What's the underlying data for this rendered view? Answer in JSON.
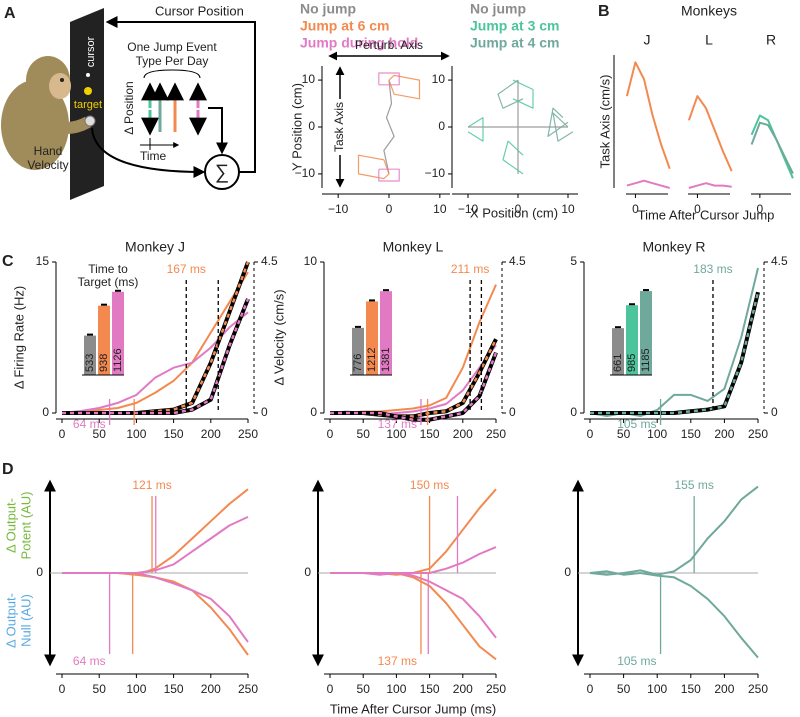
{
  "diagram": {
    "label": "A",
    "cursor_position": "Cursor Position",
    "screen_cursor": "cursor",
    "screen_target": "target",
    "jump_type": [
      "One Jump Event",
      "Type Per Day"
    ],
    "delta_position": "Δ Position",
    "time": "Time",
    "hand_velocity": [
      "Hand",
      "Velocity"
    ],
    "sum": "∑"
  },
  "chart_data": [
    {
      "type": "trajectory",
      "ylabel": "Y Position (cm)",
      "xlabel": "X Position (cm)",
      "perturb_label": "Perturb. Axis",
      "task_label": "Task Axis",
      "xlim": [
        -12,
        12
      ],
      "ylim": [
        -13,
        13
      ],
      "xticks": [
        {
          "value": -10,
          "label": "−10"
        },
        0,
        10
      ],
      "yticks": [
        {
          "value": -10,
          "label": "−10"
        },
        0,
        10
      ],
      "series": [
        {
          "name": "No jump",
          "color": "#8c8c8c",
          "x": [
            0,
            -1,
            1,
            -0.5,
            0.5,
            0
          ],
          "y": [
            -10,
            -5,
            -2,
            2,
            5,
            10
          ]
        },
        {
          "name": "Jump at 6 cm",
          "color": "#f3894f",
          "x": [
            0,
            -1,
            -6,
            -6,
            -1,
            0,
            null,
            0,
            1,
            6,
            6,
            1,
            0
          ],
          "y": [
            -10,
            -7,
            -6,
            -10,
            -11,
            -10,
            null,
            10,
            7,
            6,
            10,
            11,
            10
          ]
        },
        {
          "name": "Jump during hold",
          "color": "#e27ac3",
          "x": [
            -2,
            2,
            2,
            -2,
            -2,
            null,
            -2,
            2,
            2,
            -2,
            -2
          ],
          "y": [
            9,
            9,
            11.5,
            11.5,
            9,
            null,
            -9,
            -9,
            -11.5,
            -11.5,
            -9
          ]
        }
      ]
    },
    {
      "type": "trajectory",
      "xlim": [
        -12,
        12
      ],
      "ylim": [
        -13,
        13
      ],
      "xticks": [
        {
          "value": -10,
          "label": "−10"
        },
        0,
        10
      ],
      "yticks": [
        {
          "value": -10,
          "label": "−10"
        },
        0,
        10
      ],
      "series": [
        {
          "name": "No jump",
          "color": "#8c8c8c",
          "x": [
            0,
            0,
            null,
            -10,
            10
          ],
          "y": [
            -10,
            10,
            null,
            0,
            0
          ]
        },
        {
          "name": "Jump at 3 cm",
          "color": "#4cc59c",
          "x": [
            -1,
            3,
            3,
            -1,
            null,
            -10,
            -7,
            -7,
            -10,
            null,
            1,
            -3,
            -2,
            1
          ],
          "y": [
            10,
            8,
            4,
            6,
            null,
            0,
            2,
            -3,
            -1,
            null,
            -10,
            -7,
            -3,
            -6
          ]
        },
        {
          "name": "Jump at 4 cm",
          "color": "#6fa99c",
          "x": [
            10,
            7,
            8,
            11,
            null,
            0,
            -4,
            -3,
            1,
            null,
            10,
            6,
            7,
            9
          ],
          "y": [
            0,
            3,
            -3,
            -1,
            null,
            10,
            7,
            4,
            6,
            null,
            1,
            -2,
            4,
            2
          ]
        }
      ]
    },
    {
      "type": "line",
      "panel": "B",
      "title": "J",
      "ylabel": "Task Axis (cm/s)",
      "axis_style": "left",
      "x": [
        -10,
        0,
        10,
        20,
        30,
        40
      ],
      "xlim": [
        -18,
        45
      ],
      "ylim": [
        0,
        55
      ],
      "xticks": [
        0
      ],
      "series": [
        {
          "name": "Jump at 6 cm",
          "color": "#f3894f",
          "values": [
            38,
            52,
            45,
            30,
            18,
            8
          ]
        },
        {
          "name": "Jump during hold",
          "color": "#e27ac3",
          "values": [
            1,
            2,
            3,
            2,
            1,
            0
          ]
        }
      ]
    },
    {
      "type": "line",
      "suptitle": "Monkeys",
      "title": "L",
      "xlabel": "Time After Cursor Jump",
      "axis_style": "bottom",
      "x": [
        -10,
        0,
        10,
        20,
        30,
        40
      ],
      "xlim": [
        -18,
        45
      ],
      "ylim": [
        0,
        55
      ],
      "xticks": [
        0
      ],
      "series": [
        {
          "name": "Jump at 6 cm",
          "color": "#f3894f",
          "values": [
            28,
            38,
            33,
            24,
            15,
            7
          ]
        },
        {
          "name": "Jump during hold",
          "color": "#e27ac3",
          "values": [
            0,
            1,
            2,
            1,
            1,
            0.5
          ]
        }
      ]
    },
    {
      "type": "line",
      "title": "R",
      "axis_style": "bottom",
      "x": [
        -10,
        0,
        10,
        20,
        30,
        40
      ],
      "xlim": [
        -18,
        45
      ],
      "ylim": [
        0,
        55
      ],
      "xticks": [
        0
      ],
      "series": [
        {
          "name": "Jump at 3 cm",
          "color": "#4cc59c",
          "values": [
            22,
            30,
            28,
            20,
            12,
            4
          ]
        },
        {
          "name": "Jump at 4 cm",
          "color": "#6fa99c",
          "values": [
            18,
            27,
            26,
            20,
            13,
            6
          ]
        }
      ]
    },
    {
      "type": "line",
      "panel": "C",
      "title": "Monkey J",
      "ylabel": "Δ Firing Rate (Hz)",
      "y2label": "Δ Velocity (cm/s)",
      "axis_style": "spines",
      "x": [
        0,
        25,
        50,
        75,
        100,
        125,
        150,
        175,
        200,
        225,
        250
      ],
      "xlim": [
        0,
        250
      ],
      "ylim": [
        0,
        15
      ],
      "y2lim": [
        0,
        4.5
      ],
      "xticks": [
        0,
        50,
        100,
        150,
        200,
        250
      ],
      "yticks": [
        0,
        15
      ],
      "y2ticks": [
        0,
        4.5
      ],
      "series": [
        {
          "name": "Jump at 6 cm",
          "color": "#f3894f",
          "values": [
            0,
            0.1,
            0.3,
            0.5,
            1,
            2,
            3.2,
            5,
            8,
            11,
            14
          ]
        },
        {
          "name": "Jump during hold",
          "color": "#e27ac3",
          "values": [
            0,
            0.2,
            0.5,
            1,
            1.8,
            3.5,
            4.5,
            5,
            6.5,
            8.5,
            10
          ]
        },
        {
          "name": "Jump at 6 cm",
          "color": "#f3894f",
          "axis": "y2",
          "style": "dashed",
          "values": [
            0,
            0,
            0,
            0,
            0,
            0.05,
            0.1,
            0.3,
            1.5,
            3,
            4.5
          ]
        },
        {
          "name": "Jump during hold",
          "color": "#e27ac3",
          "axis": "y2",
          "style": "dashed",
          "values": [
            0,
            0,
            0,
            0,
            0,
            0,
            0,
            0.1,
            0.4,
            2,
            3.4
          ]
        }
      ],
      "annotations": [
        {
          "x": 167,
          "label": "167 ms",
          "color": "#f3894f",
          "pos": "top",
          "style": "dashed"
        },
        {
          "x": 210,
          "color": "#e27ac3",
          "pos": "top",
          "style": "dashed"
        },
        {
          "x": 64,
          "label": "64 ms",
          "color": "#e27ac3",
          "pos": "bottom"
        },
        {
          "x": 97,
          "color": "#f3894f",
          "pos": "bottom"
        }
      ],
      "inset": {
        "title": [
          "Time to",
          "Target (ms)"
        ],
        "ylim": [
          0,
          1150
        ],
        "values": [
          533,
          938,
          1126
        ],
        "colors": [
          "#8c8c8c",
          "#f3894f",
          "#e27ac3"
        ]
      }
    },
    {
      "type": "line",
      "title": "Monkey L",
      "axis_style": "spines",
      "x": [
        0,
        25,
        50,
        75,
        100,
        125,
        150,
        175,
        200,
        225,
        250
      ],
      "xlim": [
        0,
        250
      ],
      "ylim": [
        0,
        10
      ],
      "y2lim": [
        0,
        4.5
      ],
      "xticks": [
        0,
        50,
        100,
        150,
        200,
        250
      ],
      "yticks": [
        0,
        10
      ],
      "y2ticks": [
        0,
        4.5
      ],
      "series": [
        {
          "name": "Jump at 6 cm",
          "color": "#f3894f",
          "values": [
            0,
            0,
            0.1,
            0.1,
            0.2,
            0.3,
            0.5,
            1,
            3,
            6,
            8.5
          ]
        },
        {
          "name": "Jump during hold",
          "color": "#e27ac3",
          "values": [
            0,
            0.1,
            0,
            -0.1,
            0,
            0.1,
            0.3,
            0.6,
            1.5,
            3,
            4.5
          ]
        },
        {
          "name": "Jump at 6 cm",
          "color": "#f3894f",
          "axis": "y2",
          "style": "dashed",
          "values": [
            0,
            0,
            0,
            -0.05,
            -0.1,
            -0.1,
            0,
            0.05,
            0.3,
            1.2,
            2.2
          ]
        },
        {
          "name": "Jump during hold",
          "color": "#e27ac3",
          "axis": "y2",
          "style": "dashed",
          "values": [
            0,
            0,
            0,
            0,
            -0.1,
            -0.2,
            -0.2,
            -0.1,
            0,
            0.5,
            1.8
          ]
        }
      ],
      "annotations": [
        {
          "x": 211,
          "label": "211 ms",
          "color": "#f3894f",
          "pos": "top",
          "style": "dashed"
        },
        {
          "x": 228,
          "color": "#e27ac3",
          "pos": "top",
          "style": "dashed"
        },
        {
          "x": 137,
          "label": "137 ms",
          "color": "#e27ac3",
          "pos": "bottom"
        },
        {
          "x": 147,
          "color": "#f3894f",
          "pos": "bottom"
        }
      ],
      "inset": {
        "ylim": [
          0,
          1400
        ],
        "values": [
          776,
          1212,
          1381
        ],
        "colors": [
          "#8c8c8c",
          "#f3894f",
          "#e27ac3"
        ]
      }
    },
    {
      "type": "line",
      "title": "Monkey R",
      "axis_style": "spines",
      "x": [
        0,
        25,
        50,
        75,
        100,
        125,
        150,
        175,
        200,
        225,
        250
      ],
      "xlim": [
        0,
        250
      ],
      "ylim": [
        0,
        5
      ],
      "y2lim": [
        0,
        4.5
      ],
      "xticks": [
        0,
        50,
        100,
        150,
        200,
        250
      ],
      "yticks": [
        0,
        5
      ],
      "y2ticks": [
        0,
        4.5
      ],
      "series": [
        {
          "name": "Jump at 4 cm",
          "color": "#6fa99c",
          "values": [
            0,
            -0.1,
            0,
            -0.1,
            0.1,
            0.6,
            0.6,
            0.4,
            0.8,
            2.5,
            4.8
          ]
        },
        {
          "name": "Jump at 4 cm",
          "color": "#6fa99c",
          "axis": "y2",
          "style": "dashed",
          "values": [
            0,
            0,
            0,
            0,
            0,
            0,
            0.05,
            0.1,
            0.2,
            1.5,
            3.6
          ]
        }
      ],
      "annotations": [
        {
          "x": 183,
          "label": "183 ms",
          "color": "#6fa99c",
          "pos": "top",
          "style": "dashed"
        },
        {
          "x": 105,
          "label": "105 ms",
          "color": "#6fa99c",
          "pos": "bottom"
        }
      ],
      "inset": {
        "ylim": [
          0,
          1200
        ],
        "values": [
          661,
          985,
          1185
        ],
        "colors": [
          "#8c8c8c",
          "#4cc59c",
          "#6fa99c"
        ]
      }
    },
    {
      "type": "line",
      "panel": "D",
      "ylabel_potent": [
        "Δ Output-",
        "Potent (AU)"
      ],
      "ylabel_null": [
        "Δ Output-",
        "Null (AU)"
      ],
      "axis_style": "arrows",
      "x": [
        0,
        25,
        50,
        75,
        100,
        125,
        150,
        175,
        200,
        225,
        250
      ],
      "xlim": [
        0,
        250
      ],
      "ylim": [
        -1.1,
        1.1
      ],
      "xticks": [
        0,
        50,
        100,
        150,
        200,
        250
      ],
      "yticks": [
        0
      ],
      "series": [
        {
          "name": "Jump at 6 cm",
          "color": "#f3894f",
          "values": [
            0,
            0,
            0,
            0,
            -0.02,
            0.05,
            0.2,
            0.4,
            0.6,
            0.8,
            0.97
          ]
        },
        {
          "name": "Jump during hold",
          "color": "#e27ac3",
          "values": [
            0,
            0,
            0,
            0,
            0,
            0.03,
            0.1,
            0.25,
            0.4,
            0.55,
            0.65
          ]
        },
        {
          "name": "Jump at 6 cm",
          "color": "#f3894f",
          "values": [
            0,
            0,
            0,
            0,
            -0.02,
            -0.05,
            -0.1,
            -0.2,
            -0.4,
            -0.65,
            -0.95
          ]
        },
        {
          "name": "Jump during hold",
          "color": "#e27ac3",
          "values": [
            0,
            0,
            0,
            0,
            0,
            -0.05,
            -0.12,
            -0.2,
            -0.3,
            -0.5,
            -0.8
          ]
        }
      ],
      "annotations": [
        {
          "x": 121,
          "label": "121 ms",
          "color": "#f3894f",
          "pos": "top"
        },
        {
          "x": 126,
          "color": "#e27ac3",
          "pos": "top"
        },
        {
          "x": 64,
          "label": "64 ms",
          "color": "#e27ac3",
          "pos": "bottom"
        },
        {
          "x": 95,
          "color": "#f3894f",
          "pos": "bottom"
        }
      ]
    },
    {
      "type": "line",
      "xlabel": "Time After Cursor Jump (ms)",
      "axis_style": "arrows",
      "x": [
        0,
        25,
        50,
        75,
        100,
        125,
        150,
        175,
        200,
        225,
        250
      ],
      "xlim": [
        0,
        250
      ],
      "ylim": [
        -1.1,
        1.1
      ],
      "xticks": [
        0,
        50,
        100,
        150,
        200,
        250
      ],
      "yticks": [
        0
      ],
      "series": [
        {
          "name": "Jump at 6 cm",
          "color": "#f3894f",
          "values": [
            0,
            0,
            0,
            0,
            -0.02,
            0,
            0.05,
            0.25,
            0.5,
            0.75,
            0.97
          ]
        },
        {
          "name": "Jump during hold",
          "color": "#e27ac3",
          "values": [
            0,
            0,
            0,
            -0.02,
            0,
            0,
            0,
            0.05,
            0.12,
            0.22,
            0.3
          ]
        },
        {
          "name": "Jump at 6 cm",
          "color": "#f3894f",
          "values": [
            0,
            0,
            0,
            0,
            0,
            -0.05,
            -0.15,
            -0.35,
            -0.6,
            -0.85,
            -1
          ]
        },
        {
          "name": "Jump during hold",
          "color": "#e27ac3",
          "values": [
            0,
            0,
            0,
            0,
            0,
            -0.03,
            -0.1,
            -0.2,
            -0.3,
            -0.5,
            -0.75
          ]
        }
      ],
      "annotations": [
        {
          "x": 150,
          "label": "150 ms",
          "color": "#f3894f",
          "pos": "top"
        },
        {
          "x": 192,
          "color": "#e27ac3",
          "pos": "top"
        },
        {
          "x": 137,
          "label": "137 ms",
          "color": "#f3894f",
          "pos": "bottom"
        },
        {
          "x": 148,
          "color": "#e27ac3",
          "pos": "bottom"
        }
      ]
    },
    {
      "type": "line",
      "axis_style": "arrows",
      "x": [
        0,
        25,
        50,
        75,
        100,
        125,
        150,
        175,
        200,
        225,
        250
      ],
      "xlim": [
        0,
        250
      ],
      "ylim": [
        -1.1,
        1.1
      ],
      "xticks": [
        0,
        50,
        100,
        150,
        200,
        250
      ],
      "yticks": [
        0
      ],
      "series": [
        {
          "name": "Jump at 4 cm",
          "color": "#6fa99c",
          "values": [
            0,
            -0.02,
            0,
            0.03,
            -0.02,
            0.02,
            0.15,
            0.4,
            0.6,
            0.85,
            1
          ]
        },
        {
          "name": "Jump at 4 cm",
          "color": "#6fa99c",
          "values": [
            0,
            0.02,
            -0.02,
            0,
            -0.03,
            -0.05,
            -0.15,
            -0.3,
            -0.5,
            -0.75,
            -0.98
          ]
        }
      ],
      "annotations": [
        {
          "x": 155,
          "label": "155 ms",
          "color": "#6fa99c",
          "pos": "top"
        },
        {
          "x": 105,
          "label": "105 ms",
          "color": "#6fa99c",
          "pos": "bottom"
        }
      ]
    }
  ]
}
